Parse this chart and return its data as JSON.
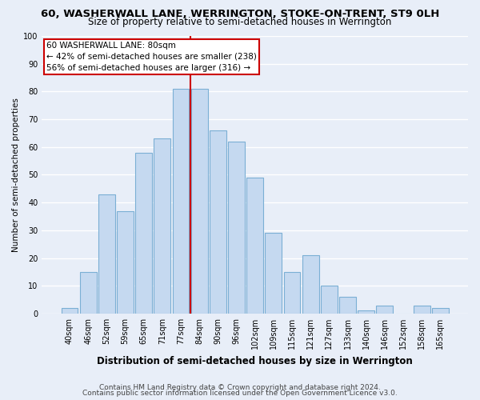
{
  "title1": "60, WASHERWALL LANE, WERRINGTON, STOKE-ON-TRENT, ST9 0LH",
  "title2": "Size of property relative to semi-detached houses in Werrington",
  "xlabel": "Distribution of semi-detached houses by size in Werrington",
  "ylabel": "Number of semi-detached properties",
  "categories": [
    "40sqm",
    "46sqm",
    "52sqm",
    "59sqm",
    "65sqm",
    "71sqm",
    "77sqm",
    "84sqm",
    "90sqm",
    "96sqm",
    "102sqm",
    "109sqm",
    "115sqm",
    "121sqm",
    "127sqm",
    "133sqm",
    "140sqm",
    "146sqm",
    "152sqm",
    "158sqm",
    "165sqm"
  ],
  "values": [
    2,
    15,
    43,
    37,
    58,
    63,
    81,
    81,
    66,
    62,
    49,
    29,
    15,
    21,
    10,
    6,
    1,
    3,
    0,
    3,
    2
  ],
  "bar_color": "#c5d9f0",
  "bar_edge_color": "#7bafd4",
  "annotation_title": "60 WASHERWALL LANE: 80sqm",
  "annotation_line1": "← 42% of semi-detached houses are smaller (238)",
  "annotation_line2": "56% of semi-detached houses are larger (316) →",
  "annotation_box_color": "#ffffff",
  "annotation_box_edge": "#cc0000",
  "line_color": "#cc0000",
  "footer1": "Contains HM Land Registry data © Crown copyright and database right 2024.",
  "footer2": "Contains public sector information licensed under the Open Government Licence v3.0.",
  "ylim": [
    0,
    100
  ],
  "background_color": "#e8eef8",
  "grid_color": "#ffffff",
  "title1_fontsize": 9.5,
  "title2_fontsize": 8.5,
  "ylabel_fontsize": 7.5,
  "xlabel_fontsize": 8.5,
  "tick_fontsize": 7,
  "annotation_fontsize": 7.5,
  "footer_fontsize": 6.5
}
